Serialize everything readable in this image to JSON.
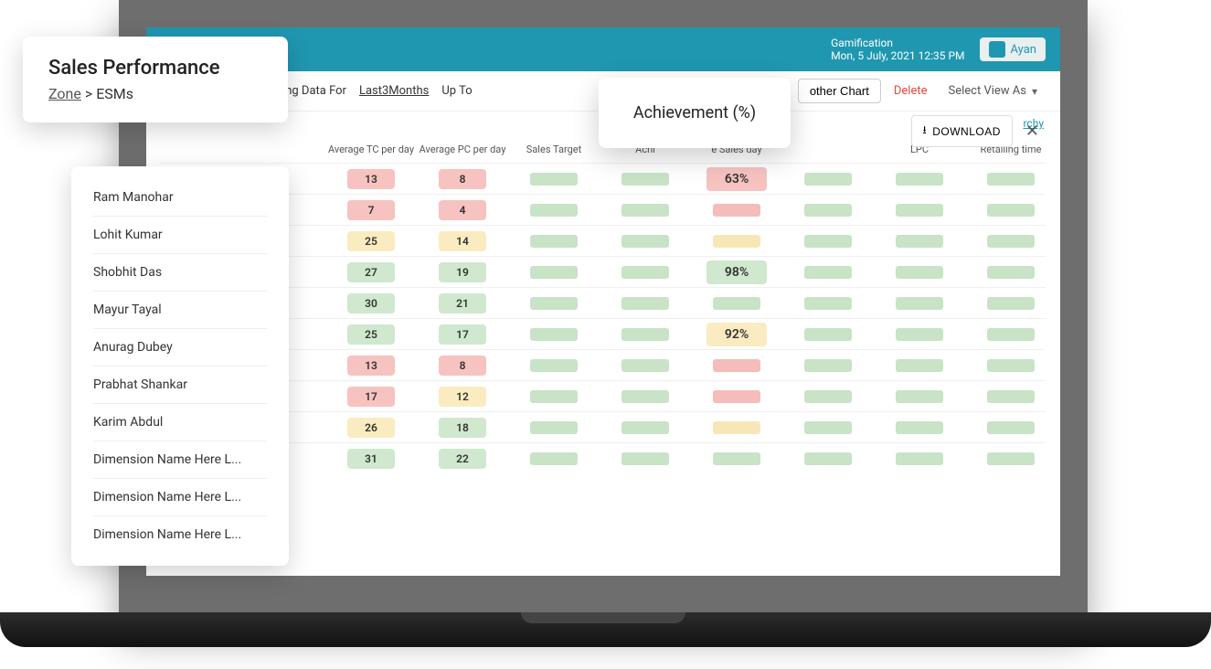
{
  "colors": {
    "teal": "#1f97b0",
    "pill_red": "#f6c3c0",
    "pill_yellow": "#faecc0",
    "pill_green": "#cfe8ce",
    "bar_green": "#c8e3c6",
    "bar_red": "#f4bdb9",
    "bar_yellow": "#f8e7b6"
  },
  "topbar": {
    "app_label": "Gamification",
    "datetime": "Mon, 5 July, 2021 12:35 PM",
    "user_name": "Ayan"
  },
  "filterbar": {
    "left_fragment": "a For 3 Months",
    "showing_label": "Showing Data For",
    "showing_value": "Last3Months",
    "upto_label": "Up To",
    "other_chart": "other Chart",
    "delete": "Delete",
    "select_view": "Select View As",
    "rchy": "rchy"
  },
  "card_title": {
    "heading": "Sales Performance",
    "crumb_root": "Zone",
    "crumb_sep": ">",
    "crumb_leaf": "ESMs"
  },
  "card_metric": {
    "label": "Achievement (%)"
  },
  "download": {
    "label": "DOWNLOAD"
  },
  "names": [
    "Ram Manohar",
    "Lohit Kumar",
    "Shobhit Das",
    "Mayur Tayal",
    "Anurag Dubey",
    "Prabhat Shankar",
    "Karim Abdul",
    "Dimension Name Here L...",
    "Dimension Name Here L...",
    "Dimension Name Here L..."
  ],
  "columns": [
    "Average TC per day",
    "Average PC per day",
    "Sales Target",
    "Achi",
    "e Sales day",
    "",
    "LPC",
    "Retailing time"
  ],
  "rows": [
    {
      "tc": {
        "v": "13",
        "c": "red"
      },
      "pc": {
        "v": "8",
        "c": "red"
      },
      "ach": {
        "v": "63%",
        "c": "red",
        "show": true
      },
      "bars": [
        "green",
        "green",
        "green",
        "green",
        "green",
        "green"
      ],
      "achbar": "red"
    },
    {
      "tc": {
        "v": "7",
        "c": "red"
      },
      "pc": {
        "v": "4",
        "c": "red"
      },
      "ach": {
        "v": "",
        "c": "red",
        "show": false
      },
      "bars": [
        "green",
        "green",
        "green",
        "green",
        "green",
        "green"
      ],
      "achbar": "red"
    },
    {
      "tc": {
        "v": "25",
        "c": "yellow"
      },
      "pc": {
        "v": "14",
        "c": "yellow"
      },
      "ach": {
        "v": "",
        "c": "yellow",
        "show": false
      },
      "bars": [
        "green",
        "green",
        "green",
        "green",
        "green",
        "green"
      ],
      "achbar": "yellow"
    },
    {
      "tc": {
        "v": "27",
        "c": "green"
      },
      "pc": {
        "v": "19",
        "c": "green"
      },
      "ach": {
        "v": "98%",
        "c": "green",
        "show": true
      },
      "bars": [
        "green",
        "green",
        "green",
        "green",
        "green",
        "green"
      ],
      "achbar": "green"
    },
    {
      "tc": {
        "v": "30",
        "c": "green"
      },
      "pc": {
        "v": "21",
        "c": "green"
      },
      "ach": {
        "v": "",
        "c": "green",
        "show": false
      },
      "bars": [
        "green",
        "green",
        "green",
        "green",
        "green",
        "green"
      ],
      "achbar": "green"
    },
    {
      "tc": {
        "v": "25",
        "c": "green"
      },
      "pc": {
        "v": "17",
        "c": "green"
      },
      "ach": {
        "v": "92%",
        "c": "yellow",
        "show": true
      },
      "bars": [
        "green",
        "green",
        "green",
        "green",
        "green",
        "green"
      ],
      "achbar": "yellow"
    },
    {
      "tc": {
        "v": "13",
        "c": "red"
      },
      "pc": {
        "v": "8",
        "c": "red"
      },
      "ach": {
        "v": "",
        "c": "red",
        "show": false
      },
      "bars": [
        "green",
        "green",
        "green",
        "green",
        "green",
        "green"
      ],
      "achbar": "red"
    },
    {
      "tc": {
        "v": "17",
        "c": "red"
      },
      "pc": {
        "v": "12",
        "c": "yellow"
      },
      "ach": {
        "v": "",
        "c": "red",
        "show": false
      },
      "bars": [
        "green",
        "green",
        "green",
        "green",
        "green",
        "green"
      ],
      "achbar": "red"
    },
    {
      "tc": {
        "v": "26",
        "c": "yellow"
      },
      "pc": {
        "v": "18",
        "c": "green"
      },
      "ach": {
        "v": "",
        "c": "yellow",
        "show": false
      },
      "bars": [
        "green",
        "green",
        "green",
        "green",
        "green",
        "green"
      ],
      "achbar": "yellow"
    },
    {
      "tc": {
        "v": "31",
        "c": "green"
      },
      "pc": {
        "v": "22",
        "c": "green"
      },
      "ach": {
        "v": "",
        "c": "green",
        "show": false
      },
      "bars": [
        "green",
        "green",
        "green",
        "green",
        "green",
        "green"
      ],
      "achbar": "green"
    }
  ]
}
